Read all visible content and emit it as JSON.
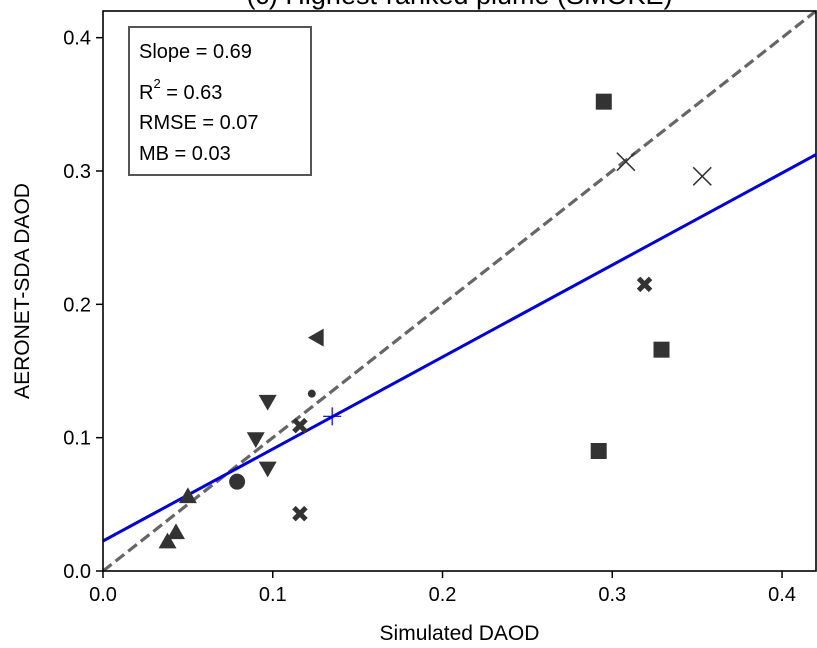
{
  "chart_data": {
    "type": "scatter",
    "title": "(c) Highest-ranked plume (SMOKE)",
    "xlabel": "Simulated DAOD",
    "ylabel": "AERONET-SDA DAOD",
    "xlim": [
      0.0,
      0.42
    ],
    "ylim": [
      0.0,
      0.42
    ],
    "xticks": [
      "0.0",
      "0.1",
      "0.2",
      "0.3",
      "0.4"
    ],
    "yticks": [
      "0.0",
      "0.1",
      "0.2",
      "0.3",
      "0.4"
    ],
    "grid": false,
    "stats": {
      "slope": "Slope = 0.69",
      "r2_prefix": "R",
      "r2_sup": "2",
      "r2_rest": " = 0.63",
      "rmse": "RMSE = 0.07",
      "mb": "MB = 0.03"
    },
    "points": [
      {
        "marker": "square",
        "x": 0.295,
        "y": 0.352
      },
      {
        "marker": "square",
        "x": 0.329,
        "y": 0.166
      },
      {
        "marker": "square",
        "x": 0.292,
        "y": 0.09
      },
      {
        "marker": "x",
        "x": 0.308,
        "y": 0.307
      },
      {
        "marker": "x",
        "x": 0.353,
        "y": 0.296
      },
      {
        "marker": "xbold",
        "x": 0.319,
        "y": 0.215
      },
      {
        "marker": "xbold",
        "x": 0.116,
        "y": 0.109
      },
      {
        "marker": "xbold",
        "x": 0.116,
        "y": 0.043
      },
      {
        "marker": "triangle-left",
        "x": 0.126,
        "y": 0.175
      },
      {
        "marker": "dot",
        "x": 0.123,
        "y": 0.133
      },
      {
        "marker": "plus",
        "x": 0.135,
        "y": 0.116
      },
      {
        "marker": "triangle-down",
        "x": 0.097,
        "y": 0.127
      },
      {
        "marker": "triangle-down",
        "x": 0.09,
        "y": 0.099
      },
      {
        "marker": "triangle-down",
        "x": 0.097,
        "y": 0.077
      },
      {
        "marker": "circle",
        "x": 0.079,
        "y": 0.067
      },
      {
        "marker": "triangle-up",
        "x": 0.05,
        "y": 0.056
      },
      {
        "marker": "triangle-up",
        "x": 0.043,
        "y": 0.029
      },
      {
        "marker": "triangle-up",
        "x": 0.038,
        "y": 0.022
      }
    ],
    "one_to_one_line": {
      "color": "#666666",
      "style": "dashed"
    },
    "fit_line": {
      "slope": 0.69,
      "intercept": 0.0225,
      "color": "#0000dd"
    },
    "marker_color": "#333333"
  }
}
